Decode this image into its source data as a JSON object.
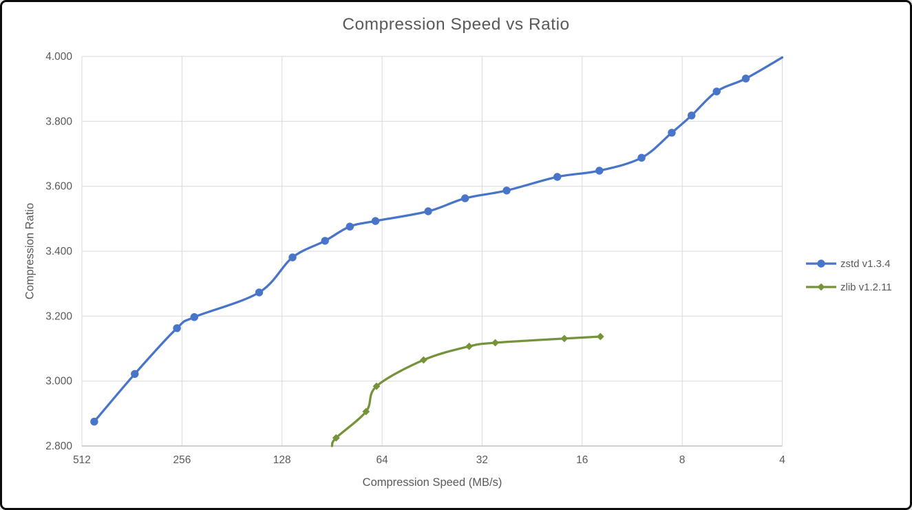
{
  "window": {
    "background": "#ffffff",
    "border_color": "#0b0b0b"
  },
  "colors": {
    "zstd_series": "#4875C8",
    "zlib_series": "#76933C",
    "gridline": "#D9D9D9",
    "axis_line": "#BFBFBF",
    "text": "#595959"
  },
  "chart_data": {
    "type": "line",
    "title": "Compression Speed vs Ratio",
    "xlabel": "Compression Speed (MB/s)",
    "ylabel": "Compression Ratio",
    "x_scale": "log2_reversed",
    "xlim": [
      512,
      4
    ],
    "ylim": [
      2.8,
      4.0
    ],
    "grid": true,
    "legend_position": "right",
    "x_ticks": [
      512,
      256,
      128,
      64,
      32,
      16,
      8,
      4
    ],
    "y_ticks": [
      "4.000",
      "3.800",
      "3.600",
      "3.400",
      "3.200",
      "3.000",
      "2.800"
    ],
    "series": [
      {
        "name": "zstd v1.3.4",
        "color": "#4875C8",
        "marker": "circle",
        "smooth": true,
        "clip_end": true,
        "points": [
          [
            470,
            2.875
          ],
          [
            355,
            3.022
          ],
          [
            265,
            3.163
          ],
          [
            235,
            3.197
          ],
          [
            150,
            3.273
          ],
          [
            119,
            3.381
          ],
          [
            95,
            3.432
          ],
          [
            80,
            3.476
          ],
          [
            67,
            3.493
          ],
          [
            46.5,
            3.523
          ],
          [
            36,
            3.563
          ],
          [
            27,
            3.587
          ],
          [
            19,
            3.629
          ],
          [
            14.2,
            3.648
          ],
          [
            10.6,
            3.688
          ],
          [
            8.6,
            3.765
          ],
          [
            7.5,
            3.818
          ],
          [
            6.3,
            3.892
          ],
          [
            5.15,
            3.932
          ],
          [
            4.0,
            3.997
          ]
        ]
      },
      {
        "name": "zlib v1.2.11",
        "color": "#76933C",
        "marker": "diamond",
        "smooth": true,
        "clip_start": true,
        "points": [
          [
            90.5,
            2.8
          ],
          [
            88,
            2.825
          ],
          [
            71.5,
            2.906
          ],
          [
            66.5,
            2.984
          ],
          [
            48,
            3.065
          ],
          [
            35,
            3.107
          ],
          [
            29.2,
            3.118
          ],
          [
            18.1,
            3.131
          ],
          [
            14.1,
            3.137
          ]
        ]
      }
    ]
  }
}
